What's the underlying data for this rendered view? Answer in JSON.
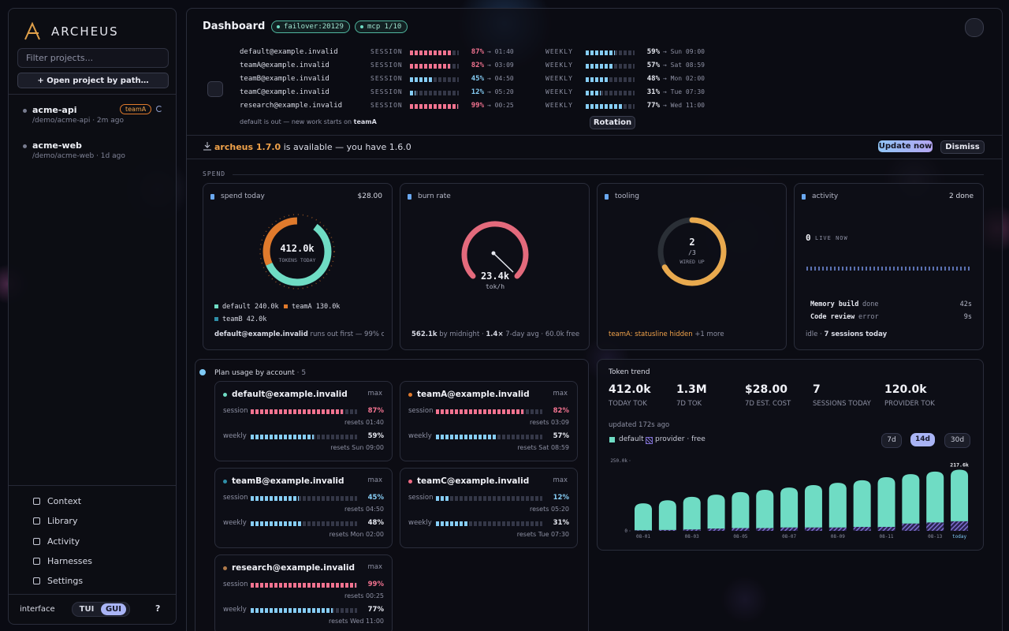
{
  "sidebar": {
    "brand": "ARCHEUS",
    "filter_placeholder": "Filter projects...",
    "open_button": "+ Open project by path…",
    "projects": [
      {
        "name": "acme-api",
        "meta": "/demo/acme-api · 2m ago",
        "tag": "teamA"
      },
      {
        "name": "acme-web",
        "meta": "/demo/acme-web · 1d ago"
      }
    ],
    "nav": [
      "Context",
      "Library",
      "Activity",
      "Harnesses",
      "Settings"
    ],
    "interface_label": "interface",
    "modes": [
      "TUI",
      "GUI"
    ],
    "active_mode": "GUI",
    "help": "?"
  },
  "header": {
    "title": "Dashboard",
    "badges": [
      "failover:20129",
      "mcp 1/10"
    ]
  },
  "accounts": {
    "session_label": "SESSION",
    "weekly_label": "WEEKLY",
    "rows": [
      {
        "email": "default@example.invalid",
        "session": 87,
        "session_text": "87%",
        "session_color": "#f27390",
        "session_reset": "→ 01:40",
        "weekly": 59,
        "weekly_text": "59%",
        "weekly_color": "#86cdf5",
        "weekly_reset": "→ Sun 09:00"
      },
      {
        "email": "teamA@example.invalid",
        "session": 82,
        "session_text": "82%",
        "session_color": "#f27390",
        "session_reset": "→ 03:09",
        "weekly": 57,
        "weekly_text": "57%",
        "weekly_color": "#86cdf5",
        "weekly_reset": "→ Sat 08:59"
      },
      {
        "email": "teamB@example.invalid",
        "session": 45,
        "session_text": "45%",
        "session_color": "#86cdf5",
        "session_reset": "→ 04:50",
        "weekly": 48,
        "weekly_text": "48%",
        "weekly_color": "#86cdf5",
        "weekly_reset": "→ Mon 02:00"
      },
      {
        "email": "teamC@example.invalid",
        "session": 12,
        "session_text": "12%",
        "session_color": "#86cdf5",
        "session_reset": "→ 05:20",
        "weekly": 31,
        "weekly_text": "31%",
        "weekly_color": "#86cdf5",
        "weekly_reset": "→ Tue 07:30"
      },
      {
        "email": "research@example.invalid",
        "session": 99,
        "session_text": "99%",
        "session_color": "#f27390",
        "session_reset": "→ 00:25",
        "weekly": 77,
        "weekly_text": "77%",
        "weekly_color": "#86cdf5",
        "weekly_reset": "→ Wed 11:00"
      }
    ],
    "footer": "default is out — new work starts on",
    "footer_strong": "teamA",
    "rotation": "Rotation"
  },
  "update": {
    "version": "archeus 1.7.0",
    "text": "is available — you have 1.6.0",
    "update_button": "Update now",
    "dismiss_button": "Dismiss"
  },
  "spend": {
    "section": "SPEND",
    "spend_today": {
      "title": "spend today",
      "amount": "$28.00",
      "center_value": "412.0k",
      "center_label": "TOKENS TODAY",
      "segments": [
        {
          "name": "default",
          "value": 240000,
          "label": "240.0k",
          "color": "#6fdcc4"
        },
        {
          "name": "teamA",
          "value": 130000,
          "label": "130.0k",
          "color": "#e07a2c"
        },
        {
          "name": "teamB",
          "value": 42000,
          "label": "42.0k",
          "color": "#2f8fa8"
        }
      ],
      "footer_strong": "default@example.invalid",
      "footer": "runs out first — 99% of its…"
    },
    "burn_rate": {
      "title": "burn rate",
      "value": "23.4k",
      "unit": "tok/h",
      "footer": [
        "562.1k",
        " by midnight · ",
        "1.4×",
        " 7-day avg · 60.0k free"
      ]
    },
    "tooling": {
      "title": "tooling",
      "wired": 2,
      "of": {
        "value": 3,
        "label": "/3"
      },
      "label": "WIRED UP",
      "footer": "teamA: statusline hidden",
      "footer_more": "+1 more"
    },
    "activity": {
      "title": "activity",
      "done": "2 done",
      "live": "0",
      "live_label": "LIVE NOW",
      "jobs": [
        {
          "name": "Memory build",
          "status": "done",
          "time": "42s"
        },
        {
          "name": "Code review",
          "status": "error",
          "time": "9s"
        }
      ],
      "footer": "idle · ",
      "footer_strong": "7 sessions today"
    }
  },
  "plan_usage": {
    "title": "Plan usage by account",
    "count": "· 5",
    "cards": [
      {
        "name": "default@example.invalid",
        "dot": "#6fdcc4",
        "plan": "max",
        "session_label": "session",
        "session": 87,
        "session_text": "87%",
        "session_color": "#f27390",
        "session_reset": "resets 01:40",
        "weekly_label": "weekly",
        "weekly": 59,
        "weekly_text": "59%",
        "weekly_color": "#86cdf5",
        "weekly_reset": "resets Sun 09:00"
      },
      {
        "name": "teamA@example.invalid",
        "dot": "#e07a2c",
        "plan": "max",
        "session_label": "session",
        "session": 82,
        "session_text": "82%",
        "session_color": "#f27390",
        "session_reset": "resets 03:09",
        "weekly_label": "weekly",
        "weekly": 57,
        "weekly_text": "57%",
        "weekly_color": "#86cdf5",
        "weekly_reset": "resets Sat 08:59"
      },
      {
        "name": "teamB@example.invalid",
        "dot": "#2f8fa8",
        "plan": "max",
        "session_label": "session",
        "session": 45,
        "session_text": "45%",
        "session_color": "#86cdf5",
        "session_reset": "resets 04:50",
        "weekly_label": "weekly",
        "weekly": 48,
        "weekly_text": "48%",
        "weekly_color": "#86cdf5",
        "weekly_reset": "resets Mon 02:00"
      },
      {
        "name": "teamC@example.invalid",
        "dot": "#f06b84",
        "plan": "max",
        "session_label": "session",
        "session": 12,
        "session_text": "12%",
        "session_color": "#86cdf5",
        "session_reset": "resets 05:20",
        "weekly_label": "weekly",
        "weekly": 31,
        "weekly_text": "31%",
        "weekly_color": "#86cdf5",
        "weekly_reset": "resets Tue 07:30"
      },
      {
        "name": "research@example.invalid",
        "dot": "#b07a4a",
        "plan": "max",
        "session_label": "session",
        "session": 99,
        "session_text": "99%",
        "session_color": "#f27390",
        "session_reset": "resets 00:25",
        "weekly_label": "weekly",
        "weekly": 77,
        "weekly_text": "77%",
        "weekly_color": "#86cdf5",
        "weekly_reset": "resets Wed 11:00"
      }
    ]
  },
  "token_trend": {
    "title": "Token trend",
    "stats": [
      {
        "value": "412.0k",
        "label": "TODAY TOK"
      },
      {
        "value": "1.3M",
        "label": "7D TOK"
      },
      {
        "value": "$28.00",
        "label": "7D EST. COST"
      },
      {
        "value": "7",
        "label": "SESSIONS TODAY"
      },
      {
        "value": "120.0k",
        "label": "PROVIDER TOK"
      }
    ],
    "updated": "updated 172s ago",
    "ranges": [
      "7d",
      "14d",
      "30d"
    ],
    "active_range": "14d",
    "chart_data": {
      "type": "bar",
      "stacked": true,
      "categories": [
        "08-01",
        null,
        "08-03",
        null,
        "08-05",
        null,
        "08-07",
        null,
        "08-09",
        null,
        "08-11",
        null,
        "08-13",
        "today"
      ],
      "series": [
        {
          "name": "default",
          "color": "#6fdcc4",
          "values": [
            96000,
            106000,
            116000,
            121000,
            128000,
            136000,
            142000,
            151000,
            159000,
            166000,
            177000,
            176000,
            181000,
            183600
          ]
        },
        {
          "name": "provider · free",
          "color": "#7e6fd0",
          "values": [
            2000,
            3000,
            5000,
            8000,
            10000,
            10000,
            12000,
            12000,
            12000,
            14000,
            14000,
            26000,
            30000,
            34000
          ]
        }
      ],
      "ylim": [
        0,
        250000
      ],
      "yticks": [
        0,
        {
          "value": 250000,
          "label": "250.0k"
        }
      ],
      "peak_label": "217.6k"
    }
  }
}
